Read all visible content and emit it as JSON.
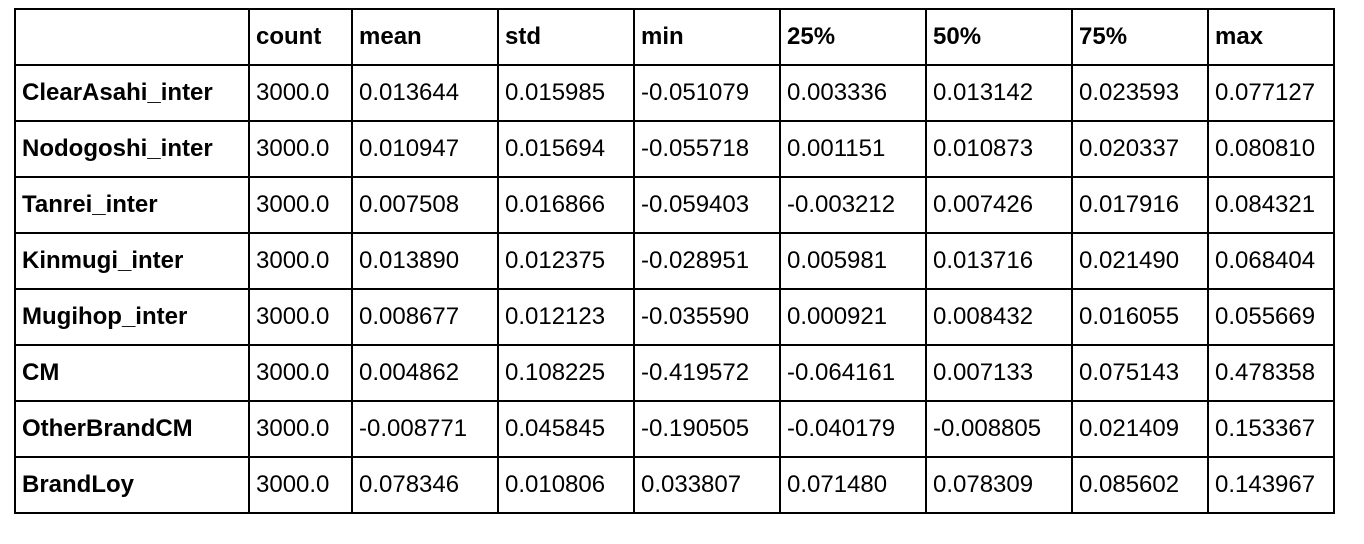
{
  "table": {
    "corner": "",
    "columns": [
      "count",
      "mean",
      "std",
      "min",
      "25%",
      "50%",
      "75%",
      "max"
    ],
    "rows": [
      {
        "label": "ClearAsahi_inter",
        "values": [
          "3000.0",
          "0.013644",
          "0.015985",
          "-0.051079",
          "0.003336",
          "0.013142",
          "0.023593",
          "0.077127"
        ]
      },
      {
        "label": "Nodogoshi_inter",
        "values": [
          "3000.0",
          "0.010947",
          "0.015694",
          "-0.055718",
          "0.001151",
          "0.010873",
          "0.020337",
          "0.080810"
        ]
      },
      {
        "label": "Tanrei_inter",
        "values": [
          "3000.0",
          "0.007508",
          "0.016866",
          "-0.059403",
          "-0.003212",
          "0.007426",
          "0.017916",
          "0.084321"
        ]
      },
      {
        "label": "Kinmugi_inter",
        "values": [
          "3000.0",
          "0.013890",
          "0.012375",
          "-0.028951",
          "0.005981",
          "0.013716",
          "0.021490",
          "0.068404"
        ]
      },
      {
        "label": "Mugihop_inter",
        "values": [
          "3000.0",
          "0.008677",
          "0.012123",
          "-0.035590",
          "0.000921",
          "0.008432",
          "0.016055",
          "0.055669"
        ]
      },
      {
        "label": "CM",
        "values": [
          "3000.0",
          "0.004862",
          "0.108225",
          "-0.419572",
          "-0.064161",
          "0.007133",
          "0.075143",
          "0.478358"
        ]
      },
      {
        "label": "OtherBrandCM",
        "values": [
          "3000.0",
          "-0.008771",
          "0.045845",
          "-0.190505",
          "-0.040179",
          "-0.008805",
          "0.021409",
          "0.153367"
        ]
      },
      {
        "label": "BrandLoy",
        "values": [
          "3000.0",
          "0.078346",
          "0.010806",
          "0.033807",
          "0.071480",
          "0.078309",
          "0.085602",
          "0.143967"
        ]
      }
    ]
  }
}
